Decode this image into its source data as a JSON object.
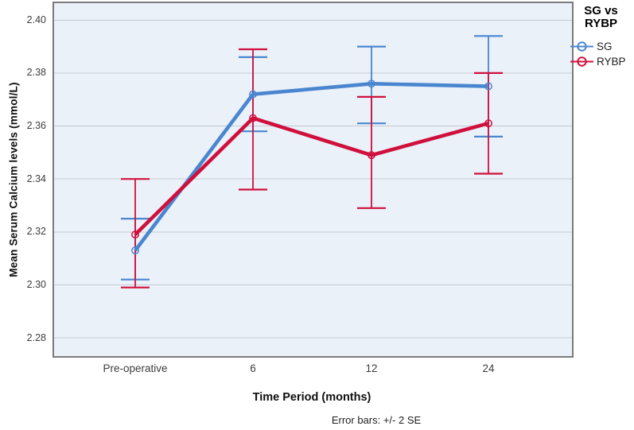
{
  "figure": {
    "footnote": "Error bars: +/- 2 SE"
  },
  "legend": {
    "title_lines": [
      "SG vs",
      "RYBP"
    ]
  },
  "chart_data": {
    "type": "line",
    "title": "",
    "xlabel": "Time Period (months)",
    "ylabel": "Mean Serum Calcium levels (mmol/L)",
    "categories": [
      "Pre-operative",
      "6",
      "12",
      "24"
    ],
    "ytick_labels": [
      "2.40",
      "2.38",
      "2.36",
      "2.34",
      "2.32",
      "2.30",
      "2.28"
    ],
    "ylim": [
      2.2725,
      2.407
    ],
    "grid": true,
    "legend_position": "outside-top-right",
    "error_bar_note": "+/- 2 SE",
    "colors": {
      "plot_background": "#eaf1f9",
      "gridline": "#c6cad0",
      "frame": "#7a7a7a",
      "sg_blue": "#4a86cf",
      "rybp_red": "#d0103c"
    },
    "series": [
      {
        "name": "SG",
        "color": "#4a86cf",
        "values": [
          2.313,
          2.372,
          2.376,
          2.375
        ],
        "upper": [
          2.325,
          2.386,
          2.39,
          2.394
        ],
        "lower": [
          2.302,
          2.358,
          2.361,
          2.356
        ]
      },
      {
        "name": "RYBP",
        "color": "#d0103c",
        "values": [
          2.319,
          2.363,
          2.349,
          2.361
        ],
        "upper": [
          2.34,
          2.389,
          2.371,
          2.38
        ],
        "lower": [
          2.299,
          2.336,
          2.329,
          2.342
        ]
      }
    ]
  }
}
